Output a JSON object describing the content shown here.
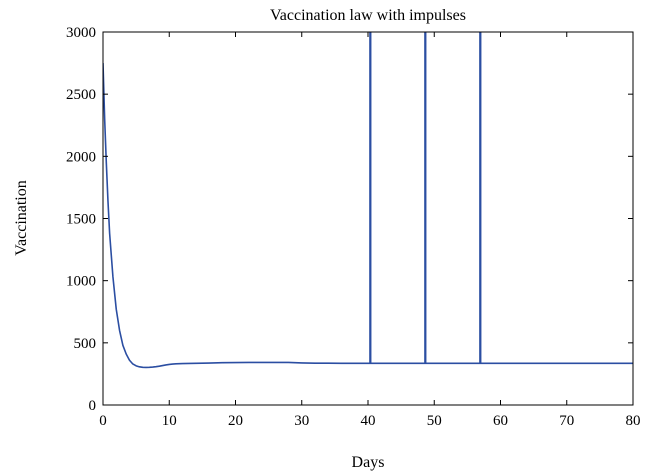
{
  "chart_data": {
    "type": "line",
    "title": "Vaccination law with impulses",
    "xlabel": "Days",
    "ylabel": "Vaccination",
    "xlim": [
      0,
      80
    ],
    "ylim": [
      0,
      3000
    ],
    "xticks": [
      0,
      10,
      20,
      30,
      40,
      50,
      60,
      70,
      80
    ],
    "yticks": [
      0,
      500,
      1000,
      1500,
      2000,
      2500,
      3000
    ],
    "grid": false,
    "legend": "none",
    "line_color": "#2b4ea2",
    "series": [
      {
        "x": [
          0,
          0.25,
          0.5,
          0.75,
          1,
          1.5,
          2,
          2.5,
          3,
          3.5,
          4,
          4.5,
          5,
          5.5,
          6,
          6.5,
          7,
          7.5,
          8,
          8.5,
          9,
          9.5,
          10,
          10.5,
          11,
          12,
          14,
          16,
          18,
          20,
          22,
          24,
          26,
          28,
          30,
          32,
          34,
          36,
          38,
          40.3,
          40.3,
          40.4,
          40.4,
          42,
          44,
          46,
          48.6,
          48.6,
          48.7,
          48.7,
          50,
          52,
          54,
          56.9,
          56.9,
          57,
          57,
          58,
          60,
          65,
          70,
          75,
          80
        ],
        "y": [
          2750,
          2300,
          1950,
          1640,
          1380,
          1030,
          770,
          600,
          480,
          410,
          360,
          330,
          315,
          307,
          303,
          302,
          303,
          305,
          308,
          312,
          317,
          322,
          326,
          329,
          331,
          333,
          335,
          337,
          340,
          341,
          342,
          342,
          342,
          342,
          338,
          336,
          336,
          335,
          335,
          335,
          3000,
          3000,
          335,
          335,
          335,
          335,
          335,
          3000,
          3000,
          335,
          335,
          335,
          335,
          335,
          3000,
          3000,
          335,
          335,
          335,
          335,
          335,
          335,
          335
        ]
      }
    ]
  }
}
